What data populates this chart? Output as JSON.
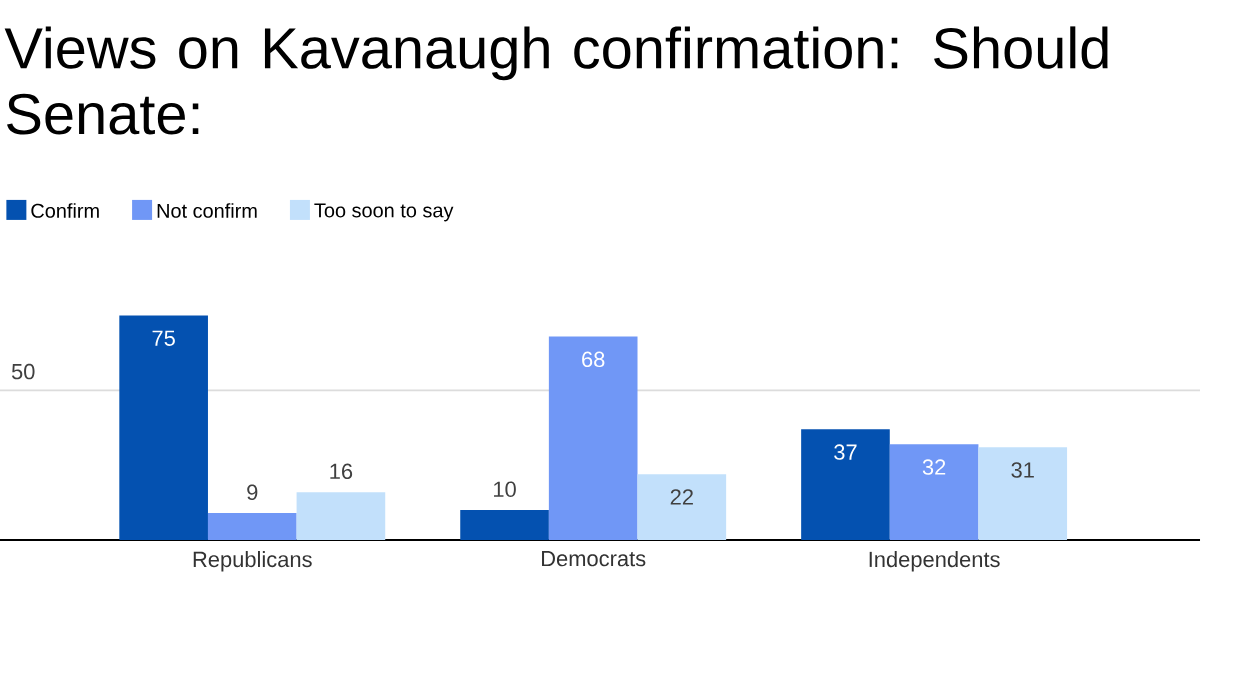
{
  "chart_data": {
    "type": "bar",
    "title": "Views on Kavanaugh confirmation: Should Senate:",
    "categories": [
      "Republicans",
      "Democrats",
      "Independents"
    ],
    "series": [
      {
        "name": "Confirm",
        "color": "#0451b0",
        "values": [
          75,
          10,
          37
        ]
      },
      {
        "name": "Not confirm",
        "color": "#7097f6",
        "values": [
          9,
          68,
          32
        ]
      },
      {
        "name": "Too soon to say",
        "color": "#c2e0fb",
        "values": [
          16,
          22,
          31
        ]
      }
    ],
    "ref_lines": [
      {
        "axis": "y",
        "value": 50,
        "label": "50",
        "color": "#dcdcdc"
      }
    ],
    "legend": "top left",
    "data_labels": true
  }
}
